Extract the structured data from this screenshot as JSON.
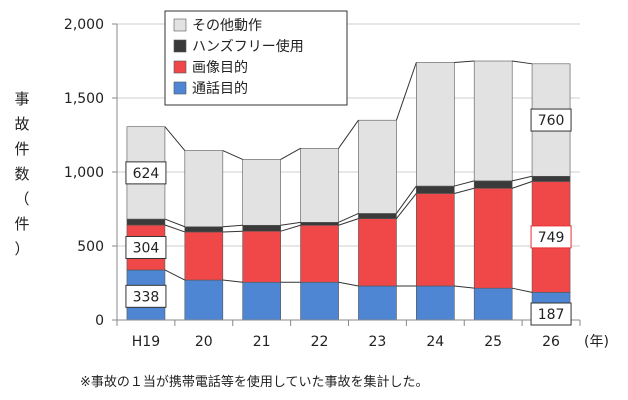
{
  "chart_data": {
    "type": "stacked-bar",
    "categories": [
      "H19",
      "20",
      "21",
      "22",
      "23",
      "24",
      "25",
      "26"
    ],
    "x_unit_label": "(年)",
    "ylabel_chars": [
      "事",
      "故",
      "件",
      "数",
      "（",
      "件",
      "）"
    ],
    "ylim": [
      0,
      2000
    ],
    "yticks": [
      0,
      500,
      1000,
      1500,
      2000
    ],
    "ytick_labels": [
      "0",
      "500",
      "1,000",
      "1,500",
      "2,000"
    ],
    "legend_position": "top-left",
    "series": [
      {
        "name": "通話目的",
        "color": "#4f86d4",
        "values": [
          338,
          270,
          255,
          255,
          230,
          230,
          215,
          187
        ]
      },
      {
        "name": "画像目的",
        "color": "#f04848",
        "values": [
          304,
          325,
          345,
          385,
          455,
          625,
          675,
          749
        ]
      },
      {
        "name": "ハンズフリー使用",
        "color": "#3a3a3a",
        "values": [
          40,
          35,
          40,
          20,
          35,
          50,
          50,
          35
        ]
      },
      {
        "name": "その他動作",
        "color": "#e2e2e2",
        "values": [
          624,
          515,
          445,
          500,
          630,
          835,
          810,
          760
        ]
      }
    ],
    "data_labels": [
      {
        "series": 3,
        "index": 0,
        "text": "624"
      },
      {
        "series": 1,
        "index": 0,
        "text": "304"
      },
      {
        "series": 0,
        "index": 0,
        "text": "338"
      },
      {
        "series": 3,
        "index": 7,
        "text": "760"
      },
      {
        "series": 1,
        "index": 7,
        "text": "749"
      },
      {
        "series": 0,
        "index": 7,
        "text": "187"
      }
    ]
  },
  "note": "※事故の１当が携帯電話等を使用していた事故を集計した。"
}
